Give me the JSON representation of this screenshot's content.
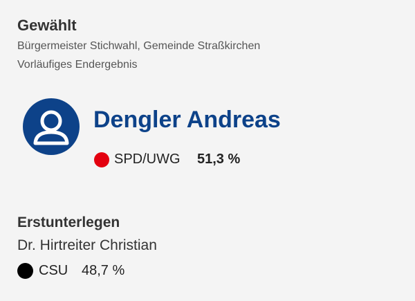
{
  "elected": {
    "heading": "Gewählt",
    "election": "Bürgermeister Stichwahl, Gemeinde Straßkirchen",
    "status": "Vorläufiges Endergebnis",
    "name": "Dengler Andreas",
    "party": "SPD/UWG",
    "percent": "51,3 %"
  },
  "runner_up": {
    "heading": "Erstunterlegen",
    "name": "Dr. Hirtreiter Christian",
    "party": "CSU",
    "percent": "48,7 %"
  }
}
